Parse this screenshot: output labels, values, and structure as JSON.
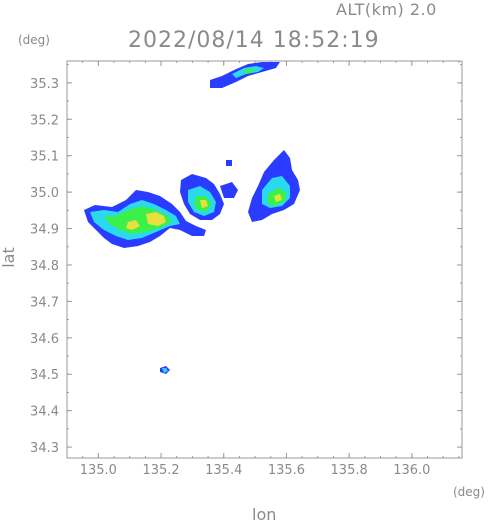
{
  "header": {
    "altitude_text": "ALT(km) 2.0",
    "timestamp": "2022/08/14 18:52:19",
    "y_unit": "(deg)",
    "x_unit": "(deg)"
  },
  "axes": {
    "x_label": "lon",
    "y_label": "lat",
    "x_ticks": [
      "135.0",
      "135.2",
      "135.4",
      "135.6",
      "135.8",
      "136.0"
    ],
    "x_tick_values": [
      135.0,
      135.2,
      135.4,
      135.6,
      135.8,
      136.0
    ],
    "y_ticks": [
      "35.3",
      "35.2",
      "35.1",
      "35.0",
      "34.9",
      "34.8",
      "34.7",
      "34.6",
      "34.5",
      "34.4",
      "34.3"
    ],
    "y_tick_values": [
      35.3,
      35.2,
      35.1,
      35.0,
      34.9,
      34.8,
      34.7,
      34.6,
      34.5,
      34.4,
      34.3
    ],
    "x_range": [
      134.9,
      136.16
    ],
    "y_range": [
      34.27,
      35.36
    ]
  },
  "colors": {
    "frame": "#9a9a9a",
    "weak": "#2a3cff",
    "moderate": "#2ad8f0",
    "strong": "#3cf04a",
    "heavy": "#e8e040"
  }
}
